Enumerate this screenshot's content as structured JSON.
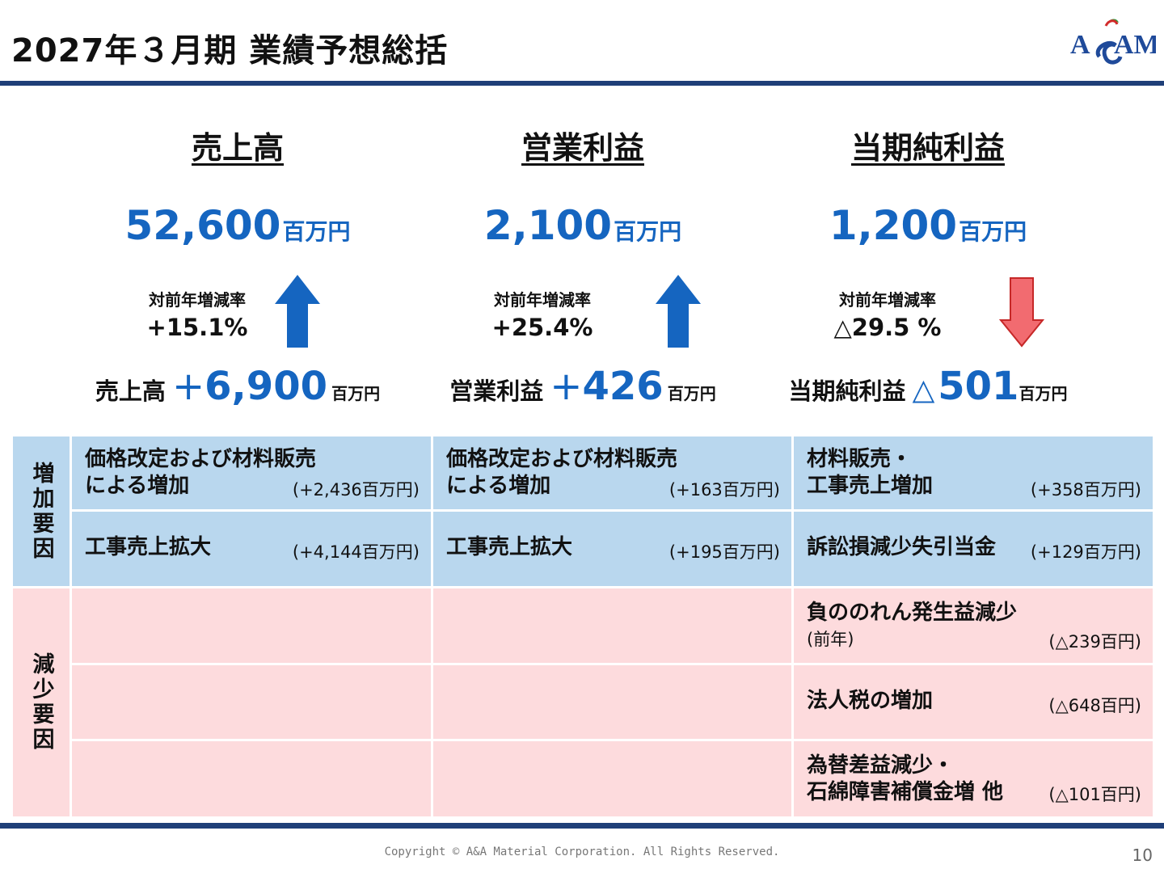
{
  "header": {
    "title": "2027年３月期 業績予想総括",
    "logo_text": "ASAM"
  },
  "columns": [
    {
      "heading": "売上高",
      "value": "52,600",
      "unit": "百万円",
      "rate_label": "対前年増減率",
      "rate": "+15.1%",
      "direction": "up",
      "delta_label": "売上高",
      "delta_sign": "+",
      "delta_value": "6,900",
      "delta_unit": "百万円"
    },
    {
      "heading": "営業利益",
      "value": "2,100",
      "unit": "百万円",
      "rate_label": "対前年増減率",
      "rate": "+25.4%",
      "direction": "up",
      "delta_label": "営業利益",
      "delta_sign": "+",
      "delta_value": "426",
      "delta_unit": "百万円"
    },
    {
      "heading": "当期純利益",
      "value": "1,200",
      "unit": "百万円",
      "rate_label": "対前年増減率",
      "rate": "△29.5 %",
      "direction": "down",
      "delta_label": "当期純利益",
      "delta_sign": "△",
      "delta_value": "501",
      "delta_unit": "百万円"
    }
  ],
  "table": {
    "increase_label": "増加要因",
    "decrease_label": "減少要因",
    "increase_rows": [
      [
        {
          "line1": "価格改定および材料販売",
          "line2": "による増加",
          "amount": "(+2,436百万円)"
        },
        {
          "line1": "価格改定および材料販売",
          "line2": "による増加",
          "amount": "(+163百万円)"
        },
        {
          "line1": "材料販売・",
          "line2": "工事売上増加",
          "amount": "(+358百万円)"
        }
      ],
      [
        {
          "line1": "工事売上拡大",
          "amount": "(+4,144百万円)"
        },
        {
          "line1": "工事売上拡大",
          "amount": "(+195百万円)"
        },
        {
          "line1": "訴訟損減少失引当金",
          "amount": "(+129百万円)"
        }
      ]
    ],
    "decrease_rows": [
      {
        "line1": "負ののれん発生益減少",
        "line2": "(前年)",
        "amount": "(△239百円)"
      },
      {
        "line1": "法人税の増加",
        "amount": "(△648百円)"
      },
      {
        "line1": "為替差益減少・",
        "line2": "石綿障害補償金増 他",
        "amount": "(△101百円)"
      }
    ]
  },
  "colors": {
    "accent_blue": "#1565c0",
    "bar": "#1f3f78",
    "increase_bg": "#b9d7ee",
    "decrease_bg": "#fddbdd",
    "down_arrow": "#f26b70"
  },
  "footer": {
    "copyright": "Copyright © A&A Material Corporation. All Rights Reserved.",
    "page": "10"
  }
}
